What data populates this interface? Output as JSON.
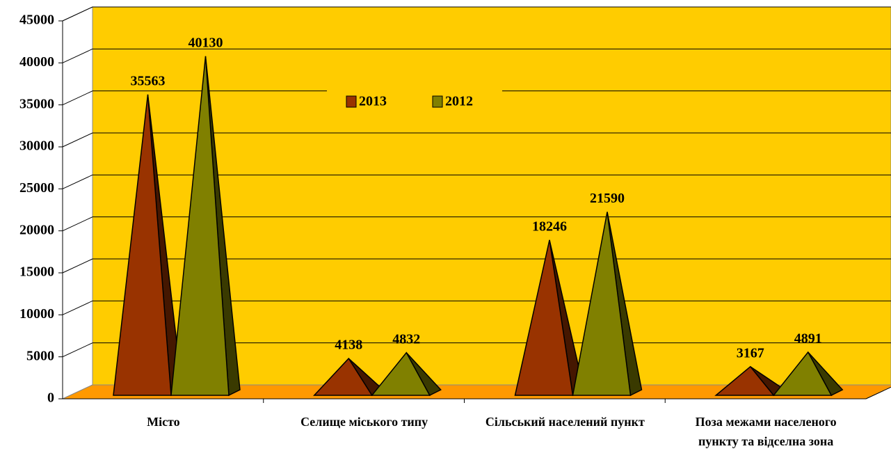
{
  "chart_data": {
    "type": "bar",
    "categories": [
      "Місто",
      "Селище міського типу",
      "Сільський населений пункт",
      "Поза межами населеного пункту та відселна зона"
    ],
    "series": [
      {
        "name": "2013",
        "color": "#993300",
        "values": [
          35563,
          4138,
          18246,
          3167
        ]
      },
      {
        "name": "2012",
        "color": "#808000",
        "values": [
          40130,
          4832,
          21590,
          4891
        ]
      }
    ],
    "ylim": [
      0,
      45000
    ],
    "yticks": [
      0,
      5000,
      10000,
      15000,
      20000,
      25000,
      30000,
      35000,
      40000,
      45000
    ],
    "grid": true,
    "legend": "top"
  }
}
